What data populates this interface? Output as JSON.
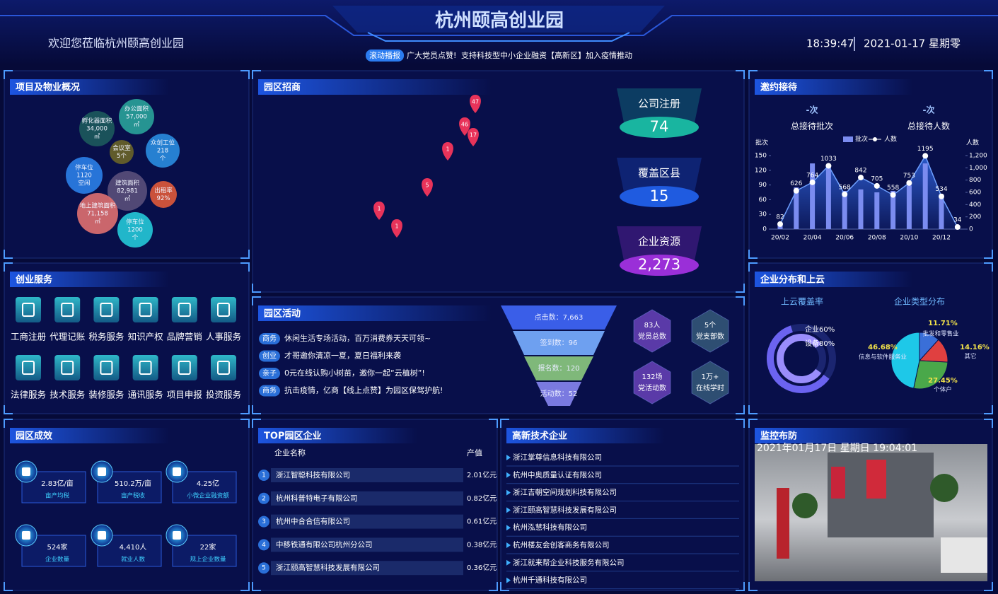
{
  "header": {
    "title": "杭州颐高创业园",
    "welcome": "欢迎您莅临杭州颐高创业园",
    "ticker_tag": "滚动播报",
    "ticker": [
      "广大党员点赞!",
      "支持科技型中小企业融资",
      "【高新区】",
      "加入疫情推动"
    ],
    "time": "18:39:47",
    "date": "2021-01-17 星期零"
  },
  "overview": {
    "title": "项目及物业概况",
    "bubbles": [
      {
        "label": "孵化器面积",
        "value": "34,000",
        "unit": "㎡",
        "color": "#1d5a5c"
      },
      {
        "label": "办公面积",
        "value": "57,000",
        "unit": "㎡",
        "color": "#2aa39a"
      },
      {
        "label": "会议室",
        "value": "5个",
        "color": "#6a6428"
      },
      {
        "label": "众创工位",
        "value": "218",
        "unit": "个",
        "color": "#2a8de0"
      },
      {
        "label": "停车位",
        "value": "1120",
        "unit": "空闲",
        "color": "#2b7fe8"
      },
      {
        "label": "建筑面积",
        "value": "82,981",
        "unit": "㎡",
        "color": "#5a4f7a"
      },
      {
        "label": "出租率",
        "value": "92%",
        "color": "#e05a3a"
      },
      {
        "label": "地上建筑面积",
        "value": "71,158",
        "unit": "㎡",
        "color": "#e07070"
      },
      {
        "label": "停车位",
        "value": "1200",
        "unit": "个",
        "color": "#25c9d8"
      }
    ]
  },
  "invest": {
    "title": "园区招商",
    "pins": [
      47,
      46,
      17,
      1,
      5,
      1,
      1
    ],
    "stats": [
      {
        "label": "公司注册",
        "value": "74",
        "color": "#19b5a0"
      },
      {
        "label": "覆盖区县",
        "value": "15",
        "color": "#1f5be0"
      },
      {
        "label": "企业资源",
        "value": "2,273",
        "color": "#9a2fd8"
      }
    ]
  },
  "reception": {
    "title": "邀约接待",
    "summary": [
      {
        "value": "-次",
        "label": "总接待批次"
      },
      {
        "value": "-次",
        "label": "总接待人数"
      }
    ],
    "chart": {
      "type": "bar-line",
      "categories": [
        "20/02",
        null,
        "20/04",
        null,
        "20/06",
        null,
        "20/08",
        null,
        "20/10",
        null,
        "20/12",
        null
      ],
      "series": [
        {
          "name": "批次",
          "color": "#7b8cf0",
          "values": [
            9,
            85,
            134,
            127,
            78,
            81,
            75,
            78,
            89,
            134,
            71,
            3
          ]
        },
        {
          "name": "人数",
          "color": "#ffffff",
          "axis": "y2",
          "values": [
            82,
            626,
            764,
            1033,
            568,
            842,
            705,
            558,
            753,
            1195,
            534,
            34
          ]
        }
      ],
      "ylabel": "批次",
      "y2label": "人数",
      "ylim": [
        0,
        150
      ],
      "yticks": [
        0,
        30,
        60,
        90,
        120,
        150
      ],
      "y2lim": [
        0,
        1200
      ],
      "y2ticks": [
        0,
        200,
        400,
        600,
        800,
        {
          "value": 1000,
          "label": "1,000"
        },
        {
          "value": 1200,
          "label": "1,200"
        }
      ]
    }
  },
  "services": {
    "title": "创业服务",
    "items": [
      "工商注册",
      "代理记账",
      "税务服务",
      "知识产权",
      "品牌营销",
      "人事服务",
      "法律服务",
      "技术服务",
      "装修服务",
      "通讯服务",
      "项目申报",
      "投资服务"
    ]
  },
  "activities": {
    "title": "园区活动",
    "items": [
      {
        "tag": "商务",
        "text": "休闲生活专场活动，百万消费券天天可领~"
      },
      {
        "tag": "创业",
        "text": "才哥邀你清凉一夏，夏日福利来袭"
      },
      {
        "tag": "亲子",
        "text": "0元在线认购小树苗，邀你一起“云植树”!"
      },
      {
        "tag": "商务",
        "text": "抗击疫情，亿商【线上点赞】为园区保驾护航!"
      }
    ],
    "funnel": [
      {
        "label": "点击数：",
        "value": "7,663",
        "color": "#3a5ee8"
      },
      {
        "label": "签到数：",
        "value": "96",
        "color": "#6ea0f0"
      },
      {
        "label": "报名数：",
        "value": "120",
        "color": "#7fb87a"
      },
      {
        "label": "活动数：",
        "value": "52",
        "color": "#7a7ae0"
      }
    ],
    "party": [
      {
        "value": "83人",
        "label": "党员总数"
      },
      {
        "value": "5个",
        "label": "党支部数"
      },
      {
        "value": "132场",
        "label": "党活动数"
      },
      {
        "value": "1万+",
        "label": "在线学时"
      }
    ]
  },
  "cloud": {
    "title": "企业分布和上云",
    "coverage_title": "上云覆盖率",
    "types_title": "企业类型分布",
    "coverage": {
      "type": "ring",
      "series": [
        {
          "name": "企业",
          "value": 60,
          "value_label": "60%",
          "color": "#6b63f0"
        },
        {
          "name": "设备",
          "value": 80,
          "value_label": "80%",
          "color": "#9a8dfb"
        }
      ]
    },
    "types": {
      "type": "pie",
      "categories": [
        "批发和零售业",
        "其它",
        "个体户",
        "信息与软件服务业"
      ],
      "values": [
        11.71,
        14.16,
        27.45,
        46.68
      ],
      "value_labels": [
        "11.71%",
        "14.16%",
        "27.45%",
        "46.68%"
      ],
      "colors": [
        "#3a6fd8",
        "#e04040",
        "#4aa84a",
        "#1ec8e8"
      ]
    }
  },
  "effects": {
    "title": "园区成效",
    "items": [
      {
        "value": "2.83亿/亩",
        "label": "亩产均税"
      },
      {
        "value": "510.2万/亩",
        "label": "亩产税收"
      },
      {
        "value": "4.25亿",
        "label": "小微企业融资额"
      },
      {
        "value": "524家",
        "label": "企业数量"
      },
      {
        "value": "4,410人",
        "label": "就业人数"
      },
      {
        "value": "22家",
        "label": "规上企业数量"
      }
    ]
  },
  "top": {
    "title": "TOP园区企业",
    "columns": [
      "企业名称",
      "产值"
    ],
    "rows": [
      [
        "1",
        "浙江智聪科技有限公司",
        "2.01亿元"
      ],
      [
        "2",
        "杭州科普特电子有限公司",
        "0.82亿元"
      ],
      [
        "3",
        "杭州中合合信有限公司",
        "0.61亿元"
      ],
      [
        "4",
        "中移铁通有限公司杭州分公司",
        "0.38亿元"
      ],
      [
        "5",
        "浙江颐高智慧科技发展有限公司",
        "0.36亿元"
      ]
    ]
  },
  "hitech": {
    "title": "高新技术企业",
    "items": [
      "浙江掌尊信息科技有限公司",
      "杭州中奥质量认证有限公司",
      "浙江吉朝空间规划科技有限公司",
      "浙江颐高智慧科技发展有限公司",
      "杭州泓慧科技有限公司",
      "杭州楼友会创客商务有限公司",
      "浙江就来帮企业科技服务有限公司",
      "杭州千通科技有限公司"
    ]
  },
  "monitor": {
    "title": "监控布防",
    "overlay": "2021年01月17日 星期日 19:04:01"
  }
}
